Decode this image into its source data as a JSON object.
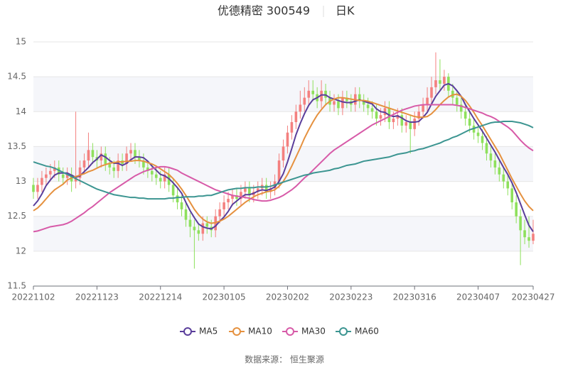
{
  "chart_data": {
    "type": "candlestick",
    "title": "优德精密 300549",
    "subtitle": "日K",
    "source": "数据来源： 恒生聚源",
    "up_color": "#f4807f",
    "down_color": "#8ee05c",
    "split_area": true,
    "ylim": [
      11.5,
      15
    ],
    "yticks": [
      11.5,
      12,
      12.5,
      13,
      13.5,
      14,
      14.5,
      15
    ],
    "categories": [
      "20221102",
      null,
      null,
      null,
      null,
      null,
      null,
      null,
      null,
      null,
      null,
      null,
      null,
      null,
      null,
      "20221123",
      null,
      null,
      null,
      null,
      null,
      null,
      null,
      null,
      null,
      null,
      null,
      null,
      null,
      null,
      "20221214",
      null,
      null,
      null,
      null,
      null,
      null,
      null,
      null,
      null,
      null,
      null,
      null,
      null,
      null,
      "20230105",
      null,
      null,
      null,
      null,
      null,
      null,
      null,
      null,
      null,
      null,
      null,
      null,
      null,
      null,
      "20230202",
      null,
      null,
      null,
      null,
      null,
      null,
      null,
      null,
      null,
      null,
      null,
      null,
      null,
      null,
      "20230223",
      null,
      null,
      null,
      null,
      null,
      null,
      null,
      null,
      null,
      null,
      null,
      null,
      null,
      null,
      "20230316",
      null,
      null,
      null,
      null,
      null,
      null,
      null,
      null,
      null,
      null,
      null,
      null,
      null,
      null,
      "20230407",
      null,
      null,
      null,
      null,
      null,
      null,
      null,
      null,
      null,
      null,
      null,
      null,
      "20230427"
    ],
    "candles": {
      "open": [
        12.95,
        12.85,
        12.95,
        13.05,
        13.1,
        13.15,
        13.2,
        13.1,
        13.05,
        13.1,
        13.0,
        13.05,
        13.2,
        13.3,
        13.45,
        13.35,
        13.3,
        13.4,
        13.25,
        13.2,
        13.15,
        13.3,
        13.25,
        13.4,
        13.45,
        13.35,
        13.3,
        13.2,
        13.15,
        13.1,
        13.05,
        13.0,
        13.1,
        12.95,
        12.8,
        12.7,
        12.6,
        12.45,
        12.35,
        12.3,
        12.25,
        12.4,
        12.35,
        12.3,
        12.5,
        12.6,
        12.7,
        12.75,
        12.8,
        12.75,
        12.85,
        12.9,
        12.8,
        12.85,
        12.9,
        12.95,
        12.85,
        12.9,
        13.0,
        13.3,
        13.5,
        13.7,
        13.85,
        14.0,
        14.1,
        14.2,
        14.3,
        14.25,
        14.15,
        14.3,
        14.2,
        14.1,
        14.15,
        14.05,
        14.2,
        14.15,
        14.1,
        14.25,
        14.15,
        14.1,
        14.05,
        14.0,
        13.9,
        13.95,
        14.05,
        13.85,
        13.9,
        13.95,
        13.8,
        13.85,
        13.75,
        13.9,
        14.0,
        14.1,
        14.2,
        14.35,
        14.45,
        14.4,
        14.5,
        14.3,
        14.2,
        14.1,
        14.0,
        13.9,
        13.8,
        13.7,
        13.65,
        13.55,
        13.4,
        13.3,
        13.2,
        13.1,
        13.0,
        12.9,
        12.7,
        12.5,
        12.3,
        12.2,
        12.15
      ],
      "high": [
        13.05,
        13.05,
        13.15,
        13.2,
        13.25,
        13.3,
        13.3,
        13.2,
        13.2,
        13.2,
        14.0,
        13.3,
        13.4,
        13.7,
        13.55,
        13.45,
        13.5,
        13.5,
        13.35,
        13.3,
        13.4,
        13.4,
        13.5,
        13.55,
        13.55,
        13.45,
        13.4,
        13.3,
        13.25,
        13.2,
        13.15,
        13.2,
        13.2,
        13.05,
        12.9,
        12.8,
        12.7,
        12.55,
        12.45,
        12.4,
        12.5,
        12.5,
        12.45,
        12.6,
        12.7,
        12.8,
        12.85,
        12.9,
        12.9,
        12.95,
        13.0,
        13.0,
        12.95,
        13.0,
        13.05,
        13.05,
        13.0,
        13.1,
        13.4,
        13.6,
        13.8,
        13.95,
        14.1,
        14.3,
        14.35,
        14.45,
        14.45,
        14.35,
        14.45,
        14.4,
        14.3,
        14.25,
        14.25,
        14.3,
        14.3,
        14.25,
        14.35,
        14.35,
        14.25,
        14.2,
        14.15,
        14.1,
        14.05,
        14.15,
        14.15,
        14.0,
        14.05,
        14.05,
        13.95,
        13.95,
        14.0,
        14.1,
        14.2,
        14.35,
        14.5,
        14.85,
        14.75,
        14.6,
        14.55,
        14.4,
        14.3,
        14.2,
        14.1,
        14.0,
        13.9,
        13.8,
        13.75,
        13.65,
        13.5,
        13.4,
        13.3,
        13.2,
        13.1,
        13.0,
        12.8,
        12.6,
        12.45,
        12.5,
        12.45
      ],
      "low": [
        12.75,
        12.75,
        12.85,
        12.95,
        13.0,
        13.05,
        13.0,
        12.95,
        12.95,
        12.85,
        12.9,
        12.95,
        13.1,
        13.2,
        13.25,
        13.2,
        13.2,
        13.15,
        13.1,
        13.05,
        13.05,
        13.15,
        13.15,
        13.3,
        13.25,
        13.2,
        13.1,
        13.05,
        13.0,
        12.95,
        12.9,
        12.9,
        12.85,
        12.7,
        12.6,
        12.5,
        12.35,
        12.2,
        11.75,
        12.15,
        12.15,
        12.25,
        12.2,
        12.2,
        12.4,
        12.5,
        12.6,
        12.65,
        12.65,
        12.65,
        12.75,
        12.7,
        12.7,
        12.75,
        12.8,
        12.75,
        12.75,
        12.8,
        12.9,
        13.2,
        13.4,
        13.6,
        13.75,
        13.9,
        14.0,
        14.1,
        14.15,
        14.05,
        14.05,
        14.1,
        14.0,
        14.0,
        13.95,
        13.95,
        14.05,
        14.0,
        14.0,
        14.05,
        14.0,
        13.95,
        13.9,
        13.8,
        13.8,
        13.85,
        13.75,
        13.75,
        13.8,
        13.7,
        13.7,
        13.4,
        13.65,
        13.8,
        13.9,
        14.0,
        14.1,
        14.25,
        14.3,
        14.3,
        14.2,
        14.1,
        14.0,
        13.9,
        13.8,
        13.7,
        13.6,
        13.55,
        13.45,
        13.3,
        13.2,
        13.1,
        13.0,
        12.9,
        12.8,
        12.6,
        12.4,
        11.8,
        12.1,
        12.05,
        12.1
      ],
      "close": [
        12.85,
        12.95,
        13.05,
        13.1,
        13.15,
        13.2,
        13.1,
        13.05,
        13.1,
        13.0,
        13.05,
        13.2,
        13.3,
        13.45,
        13.35,
        13.3,
        13.4,
        13.25,
        13.2,
        13.15,
        13.3,
        13.25,
        13.4,
        13.45,
        13.35,
        13.3,
        13.2,
        13.15,
        13.1,
        13.05,
        13.0,
        13.1,
        12.95,
        12.8,
        12.7,
        12.6,
        12.45,
        12.35,
        12.3,
        12.25,
        12.4,
        12.35,
        12.3,
        12.5,
        12.6,
        12.7,
        12.75,
        12.8,
        12.75,
        12.85,
        12.9,
        12.8,
        12.85,
        12.9,
        12.95,
        12.85,
        12.9,
        13.0,
        13.3,
        13.5,
        13.7,
        13.85,
        14.0,
        14.1,
        14.2,
        14.3,
        14.25,
        14.15,
        14.3,
        14.2,
        14.1,
        14.15,
        14.05,
        14.2,
        14.15,
        14.1,
        14.25,
        14.15,
        14.1,
        14.05,
        14.0,
        13.9,
        13.95,
        14.05,
        13.85,
        13.9,
        13.95,
        13.8,
        13.85,
        13.75,
        13.9,
        14.0,
        14.1,
        14.2,
        14.35,
        14.45,
        14.4,
        14.5,
        14.3,
        14.2,
        14.1,
        14.0,
        13.9,
        13.8,
        13.7,
        13.65,
        13.55,
        13.4,
        13.3,
        13.2,
        13.1,
        13.0,
        12.9,
        12.7,
        12.5,
        12.3,
        12.2,
        12.15,
        12.25
      ]
    },
    "series": [
      {
        "name": "MA5",
        "color": "#5a3e9b",
        "values": [
          12.65,
          12.72,
          12.82,
          12.94,
          13.02,
          13.09,
          13.12,
          13.12,
          13.12,
          13.09,
          13.06,
          13.08,
          13.14,
          13.2,
          13.27,
          13.32,
          13.38,
          13.35,
          13.3,
          13.26,
          13.26,
          13.23,
          13.26,
          13.31,
          13.35,
          13.35,
          13.34,
          13.29,
          13.22,
          13.16,
          13.1,
          13.08,
          13.04,
          12.98,
          12.91,
          12.83,
          12.7,
          12.58,
          12.48,
          12.39,
          12.35,
          12.33,
          12.32,
          12.36,
          12.43,
          12.49,
          12.57,
          12.67,
          12.72,
          12.77,
          12.81,
          12.81,
          12.83,
          12.86,
          12.88,
          12.87,
          12.89,
          12.92,
          13.0,
          13.11,
          13.28,
          13.47,
          13.67,
          13.83,
          13.97,
          14.09,
          14.17,
          14.2,
          14.24,
          14.24,
          14.2,
          14.18,
          14.16,
          14.14,
          14.13,
          14.13,
          14.15,
          14.17,
          14.15,
          14.13,
          14.11,
          14.04,
          14.0,
          13.99,
          13.95,
          13.93,
          13.94,
          13.91,
          13.87,
          13.85,
          13.85,
          13.86,
          13.92,
          13.99,
          14.11,
          14.22,
          14.3,
          14.38,
          14.4,
          14.37,
          14.3,
          14.22,
          14.1,
          14.0,
          13.9,
          13.81,
          13.72,
          13.62,
          13.52,
          13.42,
          13.31,
          13.2,
          13.1,
          12.98,
          12.84,
          12.68,
          12.52,
          12.37,
          12.28
        ]
      },
      {
        "name": "MA10",
        "color": "#e5913f",
        "values": [
          12.58,
          12.62,
          12.68,
          12.75,
          12.82,
          12.88,
          12.92,
          12.96,
          13.02,
          13.05,
          13.07,
          13.09,
          13.11,
          13.14,
          13.16,
          13.19,
          13.22,
          13.24,
          13.26,
          13.27,
          13.28,
          13.28,
          13.29,
          13.29,
          13.3,
          13.3,
          13.29,
          13.27,
          13.25,
          13.22,
          13.18,
          13.14,
          13.1,
          13.04,
          12.97,
          12.89,
          12.8,
          12.7,
          12.6,
          12.52,
          12.46,
          12.42,
          12.4,
          12.41,
          12.43,
          12.46,
          12.5,
          12.55,
          12.6,
          12.65,
          12.7,
          12.74,
          12.78,
          12.81,
          12.83,
          12.85,
          12.86,
          12.88,
          12.93,
          13.0,
          13.1,
          13.22,
          13.35,
          13.48,
          13.62,
          13.74,
          13.85,
          13.95,
          14.03,
          14.1,
          14.15,
          14.18,
          14.2,
          14.2,
          14.19,
          14.18,
          14.17,
          14.16,
          14.16,
          14.15,
          14.13,
          14.11,
          14.09,
          14.07,
          14.05,
          14.03,
          14.01,
          13.99,
          13.97,
          13.95,
          13.93,
          13.92,
          13.92,
          13.93,
          13.97,
          14.03,
          14.1,
          14.16,
          14.21,
          14.24,
          14.25,
          14.22,
          14.16,
          14.08,
          13.99,
          13.89,
          13.8,
          13.7,
          13.6,
          13.5,
          13.4,
          13.28,
          13.16,
          13.04,
          12.93,
          12.82,
          12.72,
          12.64,
          12.58
        ]
      },
      {
        "name": "MA30",
        "color": "#d75aa8",
        "values": [
          12.28,
          12.29,
          12.31,
          12.33,
          12.35,
          12.36,
          12.37,
          12.38,
          12.4,
          12.43,
          12.47,
          12.51,
          12.55,
          12.6,
          12.64,
          12.69,
          12.74,
          12.79,
          12.84,
          12.88,
          12.92,
          12.96,
          13.0,
          13.04,
          13.08,
          13.11,
          13.14,
          13.16,
          13.18,
          13.2,
          13.21,
          13.21,
          13.2,
          13.18,
          13.16,
          13.12,
          13.09,
          13.06,
          13.03,
          13.0,
          12.97,
          12.94,
          12.91,
          12.88,
          12.86,
          12.84,
          12.82,
          12.8,
          12.79,
          12.78,
          12.77,
          12.76,
          12.74,
          12.73,
          12.72,
          12.72,
          12.73,
          12.75,
          12.77,
          12.8,
          12.84,
          12.88,
          12.93,
          12.99,
          13.05,
          13.1,
          13.16,
          13.22,
          13.28,
          13.34,
          13.4,
          13.45,
          13.49,
          13.53,
          13.57,
          13.61,
          13.65,
          13.69,
          13.73,
          13.77,
          13.81,
          13.84,
          13.87,
          13.9,
          13.93,
          13.96,
          13.99,
          14.02,
          14.04,
          14.06,
          14.08,
          14.09,
          14.1,
          14.1,
          14.1,
          14.1,
          14.1,
          14.1,
          14.1,
          14.1,
          14.09,
          14.08,
          14.06,
          14.04,
          14.02,
          14.0,
          13.98,
          13.95,
          13.93,
          13.9,
          13.86,
          13.82,
          13.78,
          13.73,
          13.66,
          13.59,
          13.53,
          13.48,
          13.44
        ]
      },
      {
        "name": "MA60",
        "color": "#3c9591",
        "values": [
          13.28,
          13.26,
          13.24,
          13.22,
          13.21,
          13.19,
          13.16,
          13.13,
          13.1,
          13.07,
          13.04,
          13.01,
          12.98,
          12.95,
          12.92,
          12.89,
          12.87,
          12.85,
          12.83,
          12.81,
          12.8,
          12.79,
          12.78,
          12.77,
          12.77,
          12.76,
          12.76,
          12.75,
          12.75,
          12.75,
          12.75,
          12.75,
          12.76,
          12.76,
          12.77,
          12.77,
          12.78,
          12.78,
          12.78,
          12.79,
          12.79,
          12.8,
          12.8,
          12.82,
          12.84,
          12.86,
          12.88,
          12.89,
          12.9,
          12.9,
          12.91,
          12.91,
          12.91,
          12.92,
          12.92,
          12.92,
          12.93,
          12.95,
          12.97,
          12.99,
          13.01,
          13.03,
          13.05,
          13.07,
          13.09,
          13.1,
          13.12,
          13.13,
          13.14,
          13.15,
          13.16,
          13.18,
          13.19,
          13.21,
          13.23,
          13.24,
          13.25,
          13.27,
          13.29,
          13.3,
          13.31,
          13.32,
          13.33,
          13.34,
          13.35,
          13.37,
          13.39,
          13.4,
          13.41,
          13.43,
          13.44,
          13.46,
          13.47,
          13.49,
          13.51,
          13.53,
          13.55,
          13.58,
          13.6,
          13.63,
          13.65,
          13.68,
          13.71,
          13.74,
          13.76,
          13.78,
          13.8,
          13.82,
          13.84,
          13.85,
          13.85,
          13.86,
          13.86,
          13.86,
          13.85,
          13.84,
          13.82,
          13.8,
          13.77
        ]
      }
    ]
  }
}
